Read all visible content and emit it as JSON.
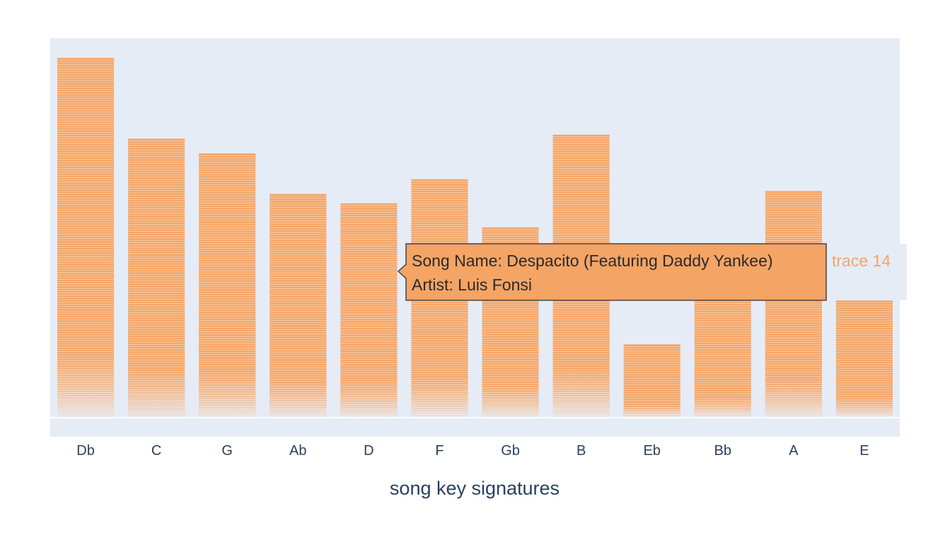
{
  "chart_data": {
    "type": "bar",
    "barmode": "stack",
    "categories": [
      "Db",
      "C",
      "G",
      "Ab",
      "D",
      "F",
      "Gb",
      "B",
      "Eb",
      "Bb",
      "A",
      "E"
    ],
    "values": [
      100,
      77.5,
      73.4,
      62.1,
      59.5,
      66.2,
      52.8,
      78.6,
      20.2,
      33.4,
      62.9,
      32.4
    ],
    "xlabel": "song key signatures",
    "ylabel": "",
    "ylim": [
      -5.5,
      105.5
    ],
    "grid": true,
    "legend": "none",
    "bar_color": "#f4a465",
    "fade_color": "#e5e9f1",
    "plot_bg": "#e5ecf6"
  },
  "hover": {
    "lines": [
      "Song Name: Despacito (Featuring Daddy Yankee)",
      "Artist: Luis Fonsi"
    ],
    "trace": "trace 14",
    "category": "D"
  }
}
